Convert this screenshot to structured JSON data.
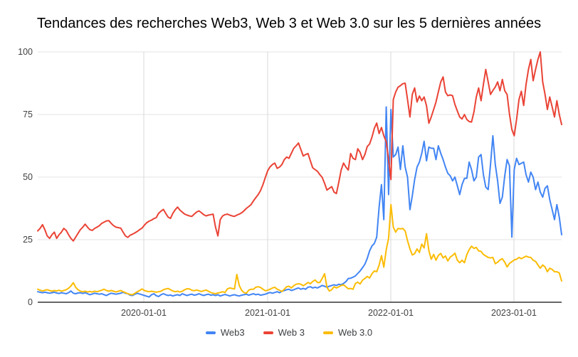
{
  "title": "Tendances des recherches Web3, Web 3 et Web 3.0 sur les 5 dernières années",
  "chart_data": {
    "type": "line",
    "title": "Tendances des recherches Web3, Web 3 et Web 3.0 sur les 5 dernières années",
    "xlabel": "",
    "ylabel": "",
    "ylim": [
      0,
      100
    ],
    "grid": true,
    "legend_position": "bottom",
    "interval": "weekly",
    "y_axis": {
      "tick_labels": [
        "100",
        "75",
        "50",
        "25",
        "0"
      ],
      "ticks": [
        100,
        75,
        50,
        25,
        0
      ]
    },
    "x_axis": {
      "tick_labels": [
        "2020-01-01",
        "2021-01-01",
        "2022-01-01",
        "2023-01-01"
      ]
    },
    "series": [
      {
        "name": "Web3",
        "color": "#4285F4",
        "values": [
          4.2,
          4,
          3.8,
          4,
          3.8,
          3.6,
          3.8,
          4,
          3.7,
          3.5,
          3.8,
          3.6,
          3.4,
          3.8,
          4.5,
          3.6,
          3.4,
          3.7,
          3.8,
          3.5,
          3.8,
          3.4,
          3,
          3.3,
          3.6,
          3.4,
          3.2,
          3.4,
          3,
          2.7,
          3.2,
          3.6,
          3.4,
          3.2,
          3.4,
          3.6,
          4,
          3.6,
          3.4,
          2.8,
          2.7,
          3.2,
          3.6,
          3.3,
          3,
          2.7,
          2.4,
          2.1,
          3,
          3.4,
          2.6,
          2.3,
          3,
          3.4,
          3,
          2.7,
          2.9,
          2.5,
          2.8,
          3,
          2.7,
          3.4,
          3,
          2.7,
          3,
          3.2,
          2.8,
          3,
          3.4,
          3,
          2.7,
          3,
          3.2,
          2.8,
          3,
          2.7,
          3,
          2.5,
          2.8,
          3.1,
          2.8,
          2.5,
          2.8,
          3,
          2.7,
          2.5,
          2.8,
          3,
          3.2,
          2.8,
          3.1,
          3.4,
          3,
          3.2,
          2.8,
          3,
          3.2,
          3.6,
          3.9,
          3.6,
          3.9,
          4.2,
          3.8,
          4.4,
          4.7,
          5,
          5.2,
          4.7,
          5,
          5.4,
          5.7,
          5.2,
          5.5,
          5.2,
          6,
          6.2,
          5.7,
          6,
          5.7,
          6.2,
          6.7,
          6.4,
          6,
          6.4,
          6.7,
          7,
          6.7,
          7.2,
          7,
          7.5,
          8.2,
          9.5,
          9.6,
          10,
          10.5,
          11.5,
          12.5,
          13.8,
          15.2,
          17.5,
          20.5,
          22.5,
          23.5,
          26,
          38,
          47,
          33,
          78,
          43,
          77,
          58,
          59,
          62,
          53,
          62.5,
          54,
          50,
          37,
          42.5,
          49,
          54,
          56,
          59.5,
          64.3,
          56.5,
          62,
          61.5,
          61.5,
          57,
          62.5,
          59.5,
          57,
          54,
          51.5,
          50.5,
          48.5,
          50,
          46.5,
          43,
          47,
          49.5,
          49.5,
          56,
          53,
          48.5,
          50,
          58,
          59,
          51,
          46,
          45,
          55,
          66.5,
          55,
          48.5,
          39.5,
          42,
          50.5,
          57,
          54.5,
          26,
          53,
          57.5,
          55,
          55.5,
          56,
          51,
          48,
          52,
          50,
          45,
          48,
          44,
          42,
          45.5,
          46.5,
          41,
          37,
          33,
          39,
          34,
          27
        ]
      },
      {
        "name": "Web 3",
        "color": "#EA4335",
        "values": [
          28.5,
          29.5,
          31,
          29,
          26.5,
          25.5,
          27,
          28,
          25.5,
          27,
          28,
          29.5,
          28.7,
          27,
          25.5,
          24.5,
          26,
          27.5,
          29,
          30,
          31.2,
          30,
          29,
          28.7,
          29.5,
          30,
          30.6,
          31.5,
          32,
          32.5,
          32.6,
          31.5,
          30.6,
          30,
          29.8,
          29.6,
          28,
          26.5,
          25.9,
          26.8,
          27.2,
          27.7,
          28.3,
          29,
          29.6,
          30.8,
          31.8,
          32.4,
          32.8,
          33.4,
          33.8,
          35.5,
          36.4,
          37.1,
          35.5,
          34,
          33.5,
          35.5,
          37,
          38,
          36.8,
          36,
          35.2,
          34.8,
          34.5,
          34.3,
          35.2,
          36,
          36.5,
          35.8,
          35,
          34.5,
          34.8,
          35,
          35.2,
          30,
          26.5,
          33,
          34.5,
          35,
          35.2,
          34.8,
          34.5,
          34.3,
          34.8,
          35.2,
          35.7,
          36.5,
          37.5,
          38.2,
          39,
          40.5,
          41.8,
          43,
          44.6,
          47,
          49.8,
          52.5,
          54.1,
          55,
          55.6,
          53.5,
          54,
          55,
          57,
          58,
          57.5,
          59.5,
          61.5,
          62.5,
          63.6,
          61,
          58.4,
          59,
          59.4,
          56.5,
          53.7,
          53,
          52.3,
          51,
          49.9,
          47.5,
          44.8,
          45.5,
          46.2,
          44,
          43.4,
          48,
          52.8,
          55.6,
          54,
          52.8,
          59.4,
          57.5,
          57,
          61.3,
          59.9,
          57,
          59,
          62.2,
          63.2,
          66,
          69.5,
          71.6,
          67.4,
          69.8,
          66.5,
          64.1,
          57,
          49,
          81,
          84,
          85.9,
          86.5,
          87.3,
          87.5,
          81,
          74,
          83,
          85.6,
          80,
          82.4,
          80.5,
          82,
          78.5,
          71.5,
          74,
          77,
          80,
          84,
          88,
          90,
          84,
          82.5,
          82.8,
          82.5,
          79,
          76.4,
          74,
          73.2,
          75,
          73,
          72.2,
          72,
          76,
          82,
          85.6,
          80.5,
          87,
          93,
          88,
          83,
          84.6,
          86,
          88,
          84.5,
          89,
          84.5,
          83,
          75.2,
          69,
          66.5,
          73,
          81,
          84.3,
          78.6,
          87,
          93,
          97,
          88.5,
          93,
          97,
          100,
          88,
          83,
          77,
          82,
          78,
          74,
          80.5,
          75,
          71
        ]
      },
      {
        "name": "Web 3.0",
        "color": "#FBBC04",
        "values": [
          5.2,
          4.8,
          4.5,
          4.8,
          5,
          4.7,
          4.4,
          4.7,
          4.5,
          4.8,
          4.4,
          4.7,
          5,
          5.6,
          6.5,
          7.8,
          6,
          5,
          4.4,
          4.2,
          4.4,
          4.1,
          4.3,
          4.1,
          4.4,
          4.2,
          4.5,
          4.8,
          5.2,
          4.7,
          4.4,
          4.7,
          4.4,
          4.1,
          4.4,
          4.7,
          4.2,
          3.8,
          3.4,
          3.1,
          3,
          3.6,
          4.2,
          4.7,
          5.3,
          4.7,
          4.4,
          4.2,
          4.4,
          4.2,
          4,
          4.2,
          4.4,
          5,
          5.3,
          5.5,
          5,
          4.5,
          4.2,
          4.4,
          4.1,
          4.4,
          5,
          5.4,
          5.3,
          4.8,
          4.6,
          4.9,
          4.6,
          4.3,
          4.6,
          4.9,
          4.4,
          3.9,
          3.6,
          3.4,
          3.7,
          3.9,
          4.2,
          3.9,
          5.3,
          5.7,
          5.5,
          5.3,
          11.1,
          6.7,
          4.8,
          3.9,
          3.6,
          4.8,
          5.2,
          5.2,
          6,
          6.2,
          5.9,
          5.2,
          4.6,
          4.8,
          5.2,
          5.7,
          6,
          5.2,
          4.8,
          4.3,
          5.2,
          6.2,
          6.4,
          5.7,
          6.6,
          7.2,
          7.4,
          7.2,
          6.6,
          7.2,
          7.9,
          7.4,
          8.3,
          8.9,
          7.9,
          7.9,
          9.5,
          11.4,
          6,
          4.5,
          5,
          6.2,
          5.7,
          6.2,
          6.7,
          7,
          6.2,
          5.4,
          5.5,
          5.2,
          7.5,
          8,
          7.3,
          8.8,
          9.5,
          10.3,
          9.7,
          11.4,
          12.5,
          12.2,
          14.8,
          18.6,
          14,
          21,
          25.5,
          39,
          30,
          28,
          29.5,
          29.3,
          29.5,
          28.5,
          24.6,
          21.3,
          18.9,
          19.4,
          21.3,
          19.9,
          23.2,
          21.7,
          27.4,
          20.6,
          17.2,
          19.1,
          16.8,
          18.7,
          19.5,
          17.7,
          18.5,
          16.5,
          18,
          18.7,
          19.6,
          16.8,
          15.8,
          16.8,
          15.8,
          19,
          21,
          22.4,
          21.5,
          21.9,
          20.5,
          20.3,
          19.1,
          18.5,
          17.9,
          17.7,
          17.9,
          15.4,
          16,
          16.9,
          17.4,
          16,
          14.1,
          15.5,
          16.2,
          16.9,
          17.2,
          17.9,
          17.4,
          17.9,
          18.4,
          18,
          17.9,
          16.8,
          16.3,
          14.9,
          13.6,
          14.9,
          14.1,
          12.2,
          13.6,
          13.1,
          12.2,
          12.2,
          11.7,
          8.5
        ]
      }
    ]
  }
}
